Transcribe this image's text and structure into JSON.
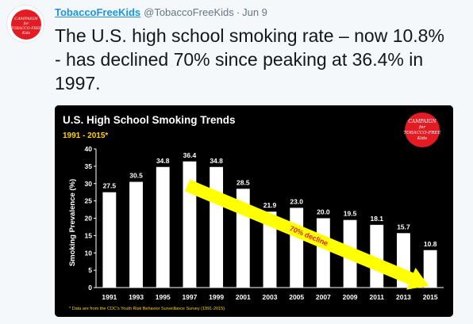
{
  "tweet": {
    "display_name": "TobaccoFreeKids",
    "handle": "@TobaccoFreeKids",
    "separator": "·",
    "date": "Jun 9",
    "text": "The U.S. high school smoking rate – now 10.8% - has declined 70% since peaking at 36.4% in 1997.",
    "avatar": {
      "lines": [
        "CAMPAIGN",
        "for",
        "TOBACCO-FREE",
        "Kids"
      ],
      "color": "#e31b23"
    }
  },
  "media": {
    "logo_lines": [
      "CAMPAIGN",
      "for",
      "TOBACCO-FREE",
      "Kids"
    ],
    "chart_data": {
      "type": "bar",
      "title": "U.S. High School Smoking Trends",
      "subtitle": "1991 - 2015*",
      "ylabel": "Smoking Prevalence (%)",
      "xlabel": "",
      "ylim": [
        0,
        40
      ],
      "yticks": [
        0,
        5,
        10,
        15,
        20,
        25,
        30,
        35,
        40
      ],
      "categories": [
        "1991",
        "1993",
        "1995",
        "1997",
        "1999",
        "2001",
        "2003",
        "2005",
        "2007",
        "2009",
        "2011",
        "2013",
        "2015"
      ],
      "values": [
        27.5,
        30.5,
        34.8,
        36.4,
        34.8,
        28.5,
        21.9,
        23.0,
        20.0,
        19.5,
        18.1,
        15.7,
        10.8
      ],
      "value_labels": [
        "27.5",
        "30.5",
        "34.8",
        "36.4",
        "34.8",
        "28.5",
        "21.9",
        "23.0",
        "20.0",
        "19.5",
        "18.1",
        "15.7",
        "10.8"
      ],
      "annotation": "70% decline",
      "footnote": "* Data are from the CDC's Youth Risk Behavior Surveillance Survey (1991-2015)",
      "grid": false,
      "colors": {
        "background": "#000000",
        "bars": "#ffffff",
        "title": "#ffffff",
        "subtitle": "#ffd200",
        "arrow": "#ffff00",
        "annotation": "#e31b23",
        "footnote": "#ffd200"
      }
    }
  }
}
